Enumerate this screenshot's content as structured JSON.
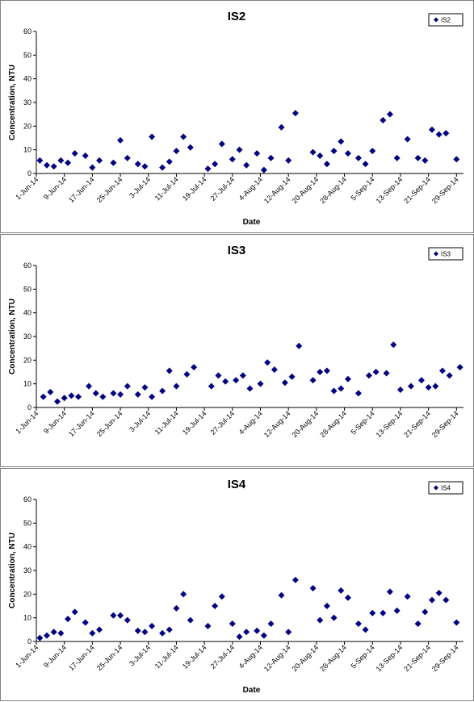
{
  "chart_data": [
    {
      "type": "scatter",
      "title": "IS2",
      "xlabel": "Date",
      "ylabel": "Concentration, NTU",
      "ylim": [
        0,
        60
      ],
      "yticks": [
        "0",
        "10",
        "20",
        "30",
        "40",
        "50",
        "60"
      ],
      "xlim": [
        "2014-06-01",
        "2014-10-01"
      ],
      "xticks": [
        "1-Jun-14",
        "9-Jun-14",
        "17-Jun-14",
        "25-Jun-14",
        "3-Jul-14",
        "11-Jul-14",
        "19-Jul-14",
        "27-Jul-14",
        "4-Aug-14",
        "12-Aug-14",
        "20-Aug-14",
        "28-Aug-14",
        "5-Sep-14",
        "13-Sep-14",
        "21-Sep-14",
        "29-Sep-14"
      ],
      "legend": "top-right",
      "series": [
        {
          "name": "IS2",
          "color": "#000080",
          "x": [
            "2014-06-02",
            "2014-06-04",
            "2014-06-06",
            "2014-06-08",
            "2014-06-10",
            "2014-06-12",
            "2014-06-15",
            "2014-06-17",
            "2014-06-19",
            "2014-06-23",
            "2014-06-25",
            "2014-06-27",
            "2014-06-30",
            "2014-07-02",
            "2014-07-04",
            "2014-07-07",
            "2014-07-09",
            "2014-07-11",
            "2014-07-13",
            "2014-07-15",
            "2014-07-20",
            "2014-07-22",
            "2014-07-24",
            "2014-07-27",
            "2014-07-29",
            "2014-07-31",
            "2014-08-03",
            "2014-08-05",
            "2014-08-07",
            "2014-08-10",
            "2014-08-12",
            "2014-08-14",
            "2014-08-19",
            "2014-08-21",
            "2014-08-23",
            "2014-08-25",
            "2014-08-27",
            "2014-08-29",
            "2014-09-01",
            "2014-09-03",
            "2014-09-05",
            "2014-09-08",
            "2014-09-10",
            "2014-09-12",
            "2014-09-15",
            "2014-09-18",
            "2014-09-20",
            "2014-09-22",
            "2014-09-24",
            "2014-09-26",
            "2014-09-29"
          ],
          "y": [
            5.5,
            3.5,
            3,
            5.5,
            4.5,
            8.5,
            7.5,
            2.5,
            5.5,
            4.5,
            14,
            6.5,
            4,
            3,
            15.5,
            2.5,
            5,
            9.5,
            15.5,
            11,
            2,
            4,
            12.5,
            6,
            10,
            3.5,
            8.5,
            1.5,
            6.5,
            19.5,
            5.5,
            25.5,
            9,
            7.5,
            4,
            9.5,
            13.5,
            8.5,
            6.5,
            4,
            9.5,
            22.5,
            25,
            6.5,
            14.5,
            6.5,
            5.5,
            18.5,
            16.5,
            17,
            6
          ]
        }
      ]
    },
    {
      "type": "scatter",
      "title": "IS3",
      "xlabel": "",
      "ylabel": "Concentration, NTU",
      "ylim": [
        0,
        60
      ],
      "yticks": [
        "0",
        "10",
        "20",
        "30",
        "40",
        "50",
        "60"
      ],
      "xlim": [
        "2014-06-01",
        "2014-10-01"
      ],
      "xticks": [
        "1-Jun-14",
        "9-Jun-14",
        "17-Jun-14",
        "25-Jun-14",
        "3-Jul-14",
        "11-Jul-14",
        "19-Jul-14",
        "27-Jul-14",
        "4-Aug-14",
        "12-Aug-14",
        "20-Aug-14",
        "28-Aug-14",
        "5-Sep-14",
        "13-Sep-14",
        "21-Sep-14",
        "29-Sep-14"
      ],
      "legend": "top-right",
      "series": [
        {
          "name": "IS3",
          "color": "#000080",
          "x": [
            "2014-06-03",
            "2014-06-05",
            "2014-06-07",
            "2014-06-09",
            "2014-06-11",
            "2014-06-13",
            "2014-06-16",
            "2014-06-18",
            "2014-06-20",
            "2014-06-23",
            "2014-06-25",
            "2014-06-27",
            "2014-06-30",
            "2014-07-02",
            "2014-07-04",
            "2014-07-07",
            "2014-07-09",
            "2014-07-11",
            "2014-07-14",
            "2014-07-16",
            "2014-07-21",
            "2014-07-23",
            "2014-07-25",
            "2014-07-28",
            "2014-07-30",
            "2014-08-01",
            "2014-08-04",
            "2014-08-06",
            "2014-08-08",
            "2014-08-11",
            "2014-08-13",
            "2014-08-15",
            "2014-08-19",
            "2014-08-21",
            "2014-08-23",
            "2014-08-25",
            "2014-08-27",
            "2014-08-29",
            "2014-09-01",
            "2014-09-04",
            "2014-09-06",
            "2014-09-09",
            "2014-09-11",
            "2014-09-13",
            "2014-09-16",
            "2014-09-19",
            "2014-09-21",
            "2014-09-23",
            "2014-09-25",
            "2014-09-27",
            "2014-09-30"
          ],
          "y": [
            4.5,
            6.5,
            2.5,
            4,
            5,
            4.5,
            9,
            6,
            4.5,
            6,
            5.5,
            9,
            5.5,
            8.5,
            4.5,
            7,
            15.5,
            9,
            14,
            17,
            9,
            13.5,
            11,
            11.5,
            13.5,
            8,
            10,
            19,
            16,
            10.5,
            13,
            26,
            11.5,
            15,
            15.5,
            7,
            8,
            12,
            6,
            13.5,
            15,
            14.5,
            26.5,
            7.5,
            9,
            11.5,
            8.5,
            9,
            15.5,
            13.5,
            17
          ]
        }
      ]
    },
    {
      "type": "scatter",
      "title": "IS4",
      "xlabel": "Date",
      "ylabel": "Concentration, NTU",
      "ylim": [
        0,
        60
      ],
      "yticks": [
        "0",
        "10",
        "20",
        "30",
        "40",
        "50",
        "60"
      ],
      "xlim": [
        "2014-06-01",
        "2014-10-01"
      ],
      "xticks": [
        "1-Jun-14",
        "9-Jun-14",
        "17-Jun-14",
        "25-Jun-14",
        "3-Jul-14",
        "11-Jul-14",
        "19-Jul-14",
        "27-Jul-14",
        "4-Aug-14",
        "12-Aug-14",
        "20-Aug-14",
        "28-Aug-14",
        "5-Sep-14",
        "13-Sep-14",
        "21-Sep-14",
        "29-Sep-14"
      ],
      "legend": "top-right",
      "series": [
        {
          "name": "IS4",
          "color": "#000080",
          "x": [
            "2014-06-02",
            "2014-06-04",
            "2014-06-06",
            "2014-06-08",
            "2014-06-10",
            "2014-06-12",
            "2014-06-15",
            "2014-06-17",
            "2014-06-19",
            "2014-06-23",
            "2014-06-25",
            "2014-06-27",
            "2014-06-30",
            "2014-07-02",
            "2014-07-04",
            "2014-07-07",
            "2014-07-09",
            "2014-07-11",
            "2014-07-13",
            "2014-07-15",
            "2014-07-20",
            "2014-07-22",
            "2014-07-24",
            "2014-07-27",
            "2014-07-29",
            "2014-07-31",
            "2014-08-03",
            "2014-08-05",
            "2014-08-07",
            "2014-08-10",
            "2014-08-12",
            "2014-08-14",
            "2014-08-19",
            "2014-08-21",
            "2014-08-23",
            "2014-08-25",
            "2014-08-27",
            "2014-08-29",
            "2014-09-01",
            "2014-09-03",
            "2014-09-05",
            "2014-09-08",
            "2014-09-10",
            "2014-09-12",
            "2014-09-15",
            "2014-09-18",
            "2014-09-20",
            "2014-09-22",
            "2014-09-24",
            "2014-09-26",
            "2014-09-29"
          ],
          "y": [
            1.5,
            2.5,
            4,
            3.5,
            9.5,
            12.5,
            8,
            3.5,
            5,
            11,
            11,
            9,
            4.5,
            4,
            6.5,
            3.5,
            5,
            14,
            20,
            9,
            6.5,
            15,
            19,
            7.5,
            2,
            4,
            4.5,
            2.5,
            7.5,
            19.5,
            4,
            26,
            22.5,
            9,
            15,
            10,
            21.5,
            18.5,
            7.5,
            5,
            12,
            12,
            21,
            13,
            19,
            7.5,
            12.5,
            17.5,
            20.5,
            17.5,
            8
          ]
        }
      ]
    }
  ]
}
